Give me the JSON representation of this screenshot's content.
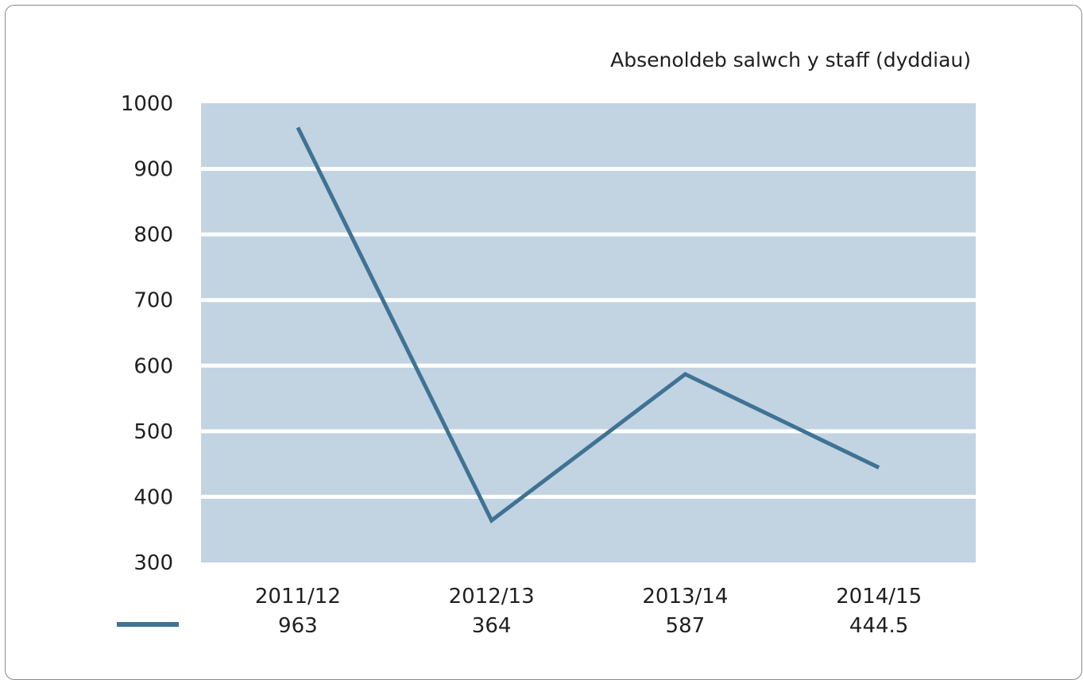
{
  "chart_data": {
    "type": "line",
    "title": "Absenoldeb salwch y staff (dyddiau)",
    "categories": [
      "2011/12",
      "2012/13",
      "2013/14",
      "2014/15"
    ],
    "value_labels": [
      "963",
      "364",
      "587",
      "444.5"
    ],
    "series": [
      {
        "values": [
          963,
          364,
          587,
          444.5
        ]
      }
    ],
    "ylim": [
      300,
      1000
    ],
    "yticks": [
      "300",
      "400",
      "500",
      "600",
      "700",
      "800",
      "900",
      "1000"
    ],
    "grid": true,
    "legend": "bottom-left table",
    "colors": {
      "line": "#3f7394",
      "plot_bg": "#c2d3e2",
      "grid": "#ffffff"
    }
  }
}
